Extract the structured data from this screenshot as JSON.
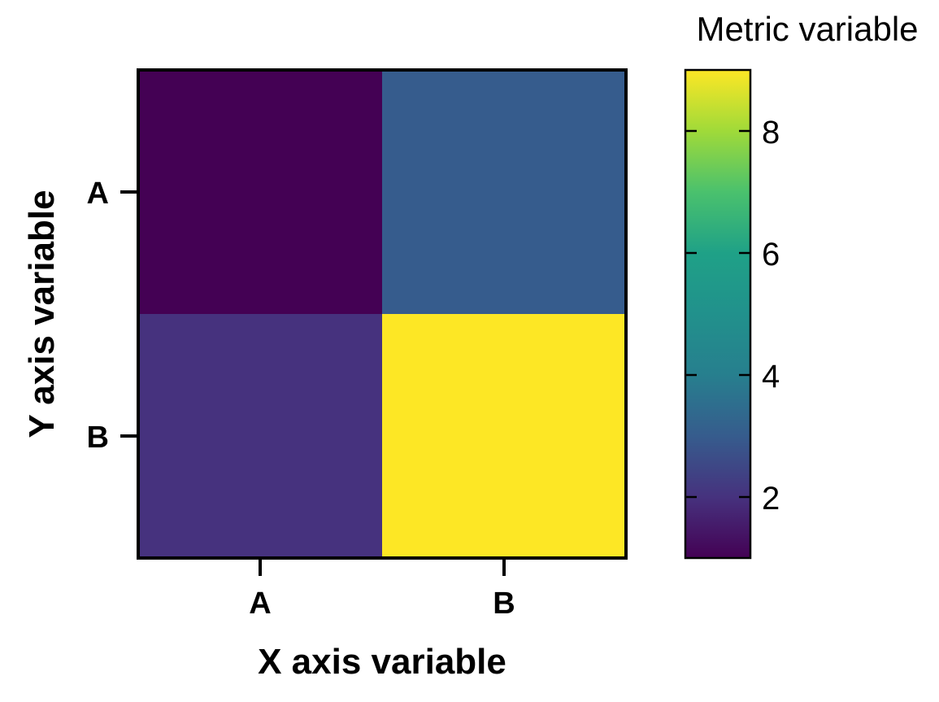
{
  "chart_data": {
    "type": "heatmap",
    "title": "",
    "xlabel": "X axis variable",
    "ylabel": "Y axis variable",
    "x_categories": [
      "A",
      "B"
    ],
    "y_categories": [
      "A",
      "B"
    ],
    "values": [
      [
        1.0,
        3.0
      ],
      [
        2.0,
        9.0
      ]
    ],
    "colorbar": {
      "label": "Metric variable",
      "range": [
        1,
        9
      ],
      "ticks": [
        2,
        4,
        6,
        8
      ],
      "tick_labels": [
        "2",
        "4",
        "6",
        "8"
      ],
      "colormap": "viridis"
    },
    "grid": false,
    "legend": "none"
  }
}
